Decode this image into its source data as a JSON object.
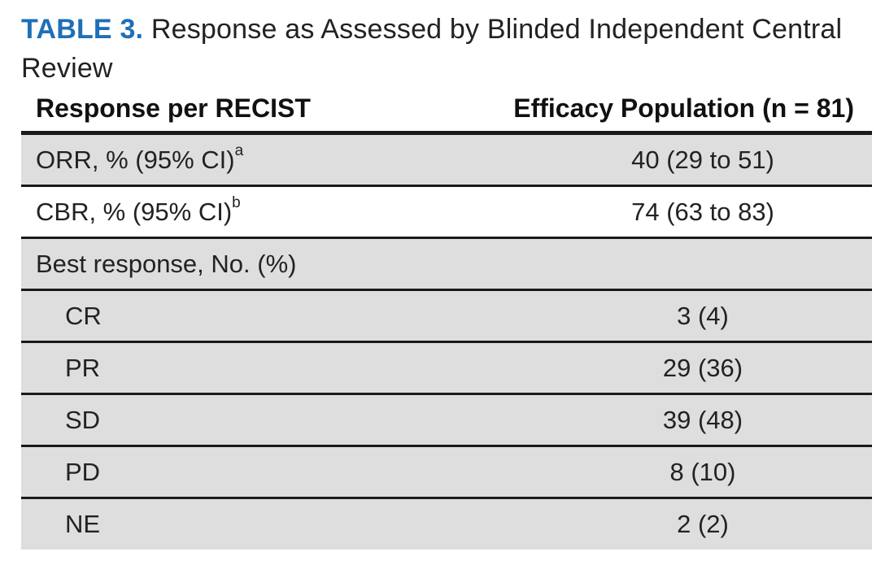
{
  "caption": {
    "label": "TABLE 3.",
    "title": "Response as Assessed by Blinded Independent Central Review"
  },
  "header": {
    "left": "Response per RECIST",
    "right": "Efficacy Population (n = 81)"
  },
  "rows": [
    {
      "label": "ORR, % (95% CI)",
      "sup": "a",
      "value": "40 (29 to 51)"
    },
    {
      "label": "CBR, % (95% CI)",
      "sup": "b",
      "value": "74 (63 to 83)"
    },
    {
      "label": "Best response, No. (%)",
      "value": ""
    },
    {
      "label": "CR",
      "value": "3 (4)"
    },
    {
      "label": "PR",
      "value": "29 (36)"
    },
    {
      "label": "SD",
      "value": "39 (48)"
    },
    {
      "label": "PD",
      "value": "8 (10)"
    },
    {
      "label": "NE",
      "value": "2 (2)"
    }
  ],
  "colors": {
    "label_blue": "#1f6fb8",
    "shade": "#dedede"
  }
}
